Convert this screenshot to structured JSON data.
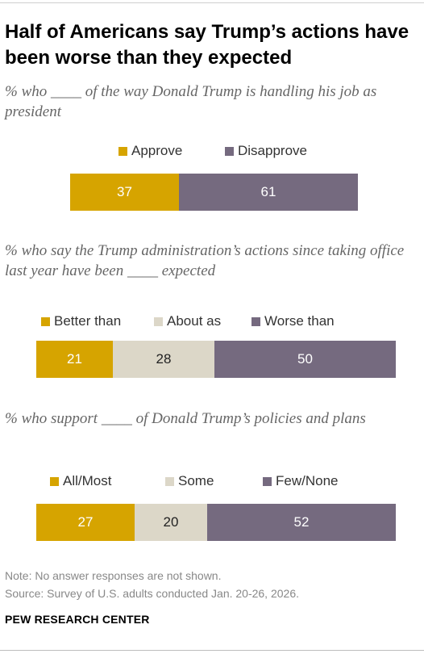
{
  "title": "Half of Americans say Trump’s actions have been worse than they expected",
  "colors": {
    "gold": "#D6A400",
    "beige": "#DCD7C8",
    "purple": "#756A7F",
    "dark_text": "#222222",
    "light_text": "#FFFFFF"
  },
  "chart_data": [
    {
      "type": "bar",
      "orientation": "horizontal-stacked",
      "title": "% who ____ of the way Donald Trump is handling his job as president",
      "series": [
        {
          "name": "Approve",
          "values": [
            37
          ]
        },
        {
          "name": "Disapprove",
          "values": [
            61
          ]
        }
      ]
    },
    {
      "type": "bar",
      "orientation": "horizontal-stacked",
      "title": "% who say the Trump administration’s actions since taking office last year have been ____ expected",
      "series": [
        {
          "name": "Better than",
          "values": [
            21
          ]
        },
        {
          "name": "About as",
          "values": [
            28
          ]
        },
        {
          "name": "Worse than",
          "values": [
            50
          ]
        }
      ]
    },
    {
      "type": "bar",
      "orientation": "horizontal-stacked",
      "title": "% who support ____ of Donald Trump’s policies and plans",
      "series": [
        {
          "name": "All/Most",
          "values": [
            27
          ]
        },
        {
          "name": "Some",
          "values": [
            20
          ]
        },
        {
          "name": "Few/None",
          "values": [
            52
          ]
        }
      ]
    }
  ],
  "note": "Note: No answer responses are not shown.",
  "source": "Source: Survey of U.S. adults conducted Jan. 20-26, 2026.",
  "organization": "PEW RESEARCH CENTER"
}
